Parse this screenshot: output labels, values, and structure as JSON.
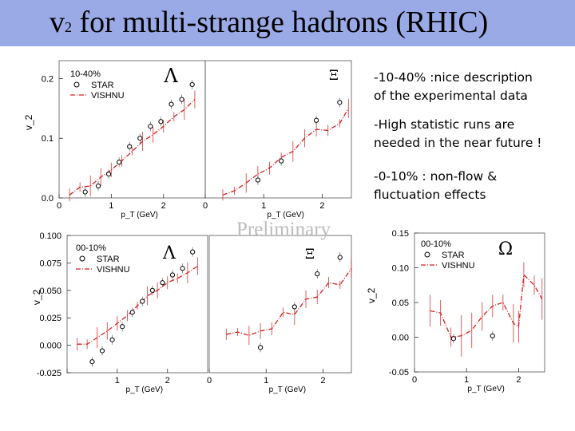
{
  "slide": {
    "title_main": "v",
    "title_sub": "2",
    "title_rest": " for multi-strange hadrons (RHIC)",
    "notes": [
      "-10-40% :nice description\nof  the experimental data",
      "-High statistic runs are\n needed in the near future !",
      "-0-10% : non-flow &\nfluctuation effects"
    ],
    "watermark": "Preliminary"
  },
  "colors": {
    "title_bar": "#9aaae6",
    "vishnu": "#d62020",
    "star": "#000000"
  },
  "chart_data": [
    {
      "type": "line",
      "id": "lambda-10-40",
      "legend_title": "10-40%",
      "particle": "Λ",
      "series": [
        {
          "name": "STAR",
          "marker": "open-circle",
          "x": [
            0.5,
            0.75,
            0.95,
            1.15,
            1.35,
            1.55,
            1.75,
            1.95,
            2.15,
            2.35,
            2.55
          ],
          "y": [
            0.01,
            0.02,
            0.04,
            0.06,
            0.086,
            0.1,
            0.12,
            0.128,
            0.157,
            0.165,
            0.19
          ]
        },
        {
          "name": "VISHNU",
          "style": "dash-dot",
          "x": [
            0.2,
            0.4,
            0.6,
            0.8,
            1.0,
            1.2,
            1.4,
            1.6,
            1.8,
            2.0,
            2.2,
            2.4,
            2.6
          ],
          "y": [
            0.005,
            0.018,
            0.02,
            0.035,
            0.047,
            0.062,
            0.078,
            0.095,
            0.106,
            0.12,
            0.136,
            0.148,
            0.165
          ]
        }
      ],
      "xlabel": "p_T (GeV)",
      "ylabel": "v_2",
      "xlim": [
        0,
        2.8
      ],
      "ylim": [
        0,
        0.23
      ],
      "xticks": [
        0,
        1,
        2
      ],
      "yticks": [
        0.0,
        0.1,
        0.2
      ],
      "ytick_labels": [
        "0.0",
        "0.1",
        "0.2"
      ]
    },
    {
      "type": "line",
      "id": "xi-10-40",
      "particle": "Ξ",
      "series": [
        {
          "name": "STAR",
          "marker": "open-circle",
          "x": [
            0.9,
            1.3,
            1.9,
            2.3
          ],
          "y": [
            0.03,
            0.062,
            0.13,
            0.16
          ]
        },
        {
          "name": "VISHNU",
          "style": "dash-dot",
          "x": [
            0.3,
            0.5,
            0.7,
            0.9,
            1.1,
            1.3,
            1.5,
            1.7,
            1.9,
            2.1,
            2.3,
            2.45
          ],
          "y": [
            0.005,
            0.012,
            0.025,
            0.04,
            0.05,
            0.068,
            0.078,
            0.1,
            0.115,
            0.113,
            0.125,
            0.15
          ]
        }
      ],
      "xlabel": "p_T (GeV)",
      "xlim": [
        0,
        2.5
      ],
      "ylim": [
        0,
        0.23
      ],
      "xticks": [
        0,
        1,
        2
      ]
    },
    {
      "type": "line",
      "id": "lambda-00-10",
      "legend_title": "00-10%",
      "particle": "Λ",
      "series": [
        {
          "name": "STAR",
          "marker": "open-circle",
          "x": [
            0.5,
            0.7,
            0.9,
            1.1,
            1.3,
            1.5,
            1.7,
            1.9,
            2.1,
            2.3,
            2.5
          ],
          "y": [
            -0.015,
            -0.005,
            0.005,
            0.017,
            0.03,
            0.04,
            0.05,
            0.057,
            0.064,
            0.07,
            0.085
          ]
        },
        {
          "name": "VISHNU",
          "style": "dash-dot",
          "x": [
            0.2,
            0.4,
            0.6,
            0.8,
            1.0,
            1.2,
            1.4,
            1.6,
            1.8,
            2.0,
            2.2,
            2.4,
            2.6
          ],
          "y": [
            0.001,
            0.001,
            0.007,
            0.013,
            0.02,
            0.027,
            0.036,
            0.045,
            0.05,
            0.057,
            0.061,
            0.066,
            0.072
          ]
        }
      ],
      "xlabel": "p_T (GeV)",
      "ylabel": "v_2",
      "xlim": [
        0,
        2.8
      ],
      "ylim": [
        -0.025,
        0.1
      ],
      "xticks": [
        0,
        1,
        2
      ],
      "yticks": [
        -0.025,
        0.0,
        0.025,
        0.05,
        0.075,
        0.1
      ],
      "ytick_labels": [
        "-0.025",
        "0.000",
        "0.025",
        "0.050",
        "0.075",
        "0.100"
      ]
    },
    {
      "type": "line",
      "id": "xi-00-10",
      "particle": "Ξ",
      "series": [
        {
          "name": "STAR",
          "marker": "open-circle",
          "x": [
            0.9,
            1.5,
            1.9,
            2.3
          ],
          "y": [
            -0.002,
            0.035,
            0.065,
            0.08
          ]
        },
        {
          "name": "VISHNU",
          "style": "dash-dot",
          "x": [
            0.3,
            0.5,
            0.7,
            0.9,
            1.1,
            1.3,
            1.5,
            1.7,
            1.9,
            2.1,
            2.3,
            2.5
          ],
          "y": [
            0.01,
            0.012,
            0.009,
            0.013,
            0.015,
            0.03,
            0.028,
            0.042,
            0.044,
            0.057,
            0.055,
            0.07
          ]
        }
      ],
      "xlabel": "p_T (GeV)",
      "xlim": [
        0,
        2.5
      ],
      "ylim": [
        -0.025,
        0.1
      ],
      "xticks": [
        0,
        1,
        2
      ]
    },
    {
      "type": "line",
      "id": "omega-00-10",
      "legend_title": "00-10%",
      "particle": "Ω",
      "series": [
        {
          "name": "STAR",
          "marker": "open-circle",
          "x": [
            0.75,
            1.5
          ],
          "y": [
            -0.002,
            0.002
          ]
        },
        {
          "name": "VISHNU",
          "style": "dash-dot",
          "x": [
            0.3,
            0.5,
            0.7,
            0.9,
            1.1,
            1.3,
            1.5,
            1.7,
            1.9,
            2.0,
            2.1,
            2.3,
            2.45
          ],
          "y": [
            0.038,
            0.035,
            0.0,
            0.002,
            0.01,
            0.03,
            0.045,
            0.05,
            0.02,
            0.015,
            0.09,
            0.075,
            0.055
          ]
        }
      ],
      "xlabel": "p_T (GeV)",
      "ylabel": "v_2",
      "xlim": [
        0,
        2.5
      ],
      "ylim": [
        -0.05,
        0.15
      ],
      "xticks": [
        0,
        1,
        2
      ],
      "yticks": [
        -0.05,
        0.0,
        0.05,
        0.1,
        0.15
      ],
      "ytick_labels": [
        "-0.05",
        "0.00",
        "0.05",
        "0.10",
        "0.15"
      ]
    }
  ]
}
